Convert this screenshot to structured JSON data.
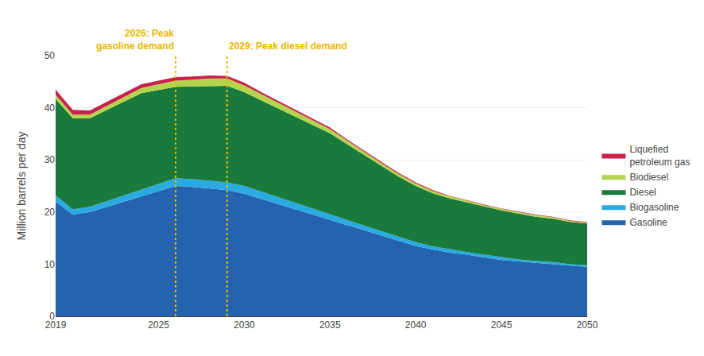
{
  "chart_data": {
    "type": "area",
    "stacked": true,
    "x": [
      2019,
      2020,
      2021,
      2022,
      2023,
      2024,
      2025,
      2026,
      2027,
      2028,
      2029,
      2030,
      2031,
      2032,
      2033,
      2034,
      2035,
      2036,
      2037,
      2038,
      2039,
      2040,
      2041,
      2042,
      2043,
      2044,
      2045,
      2046,
      2047,
      2048,
      2049,
      2050
    ],
    "series": [
      {
        "name": "Gasoline",
        "color": "#2463ae",
        "values": [
          22.0,
          19.5,
          20.0,
          21.0,
          22.0,
          23.0,
          24.0,
          25.0,
          24.8,
          24.5,
          24.2,
          23.5,
          22.5,
          21.5,
          20.5,
          19.5,
          18.5,
          17.5,
          16.5,
          15.5,
          14.5,
          13.5,
          12.8,
          12.2,
          11.8,
          11.3,
          10.8,
          10.5,
          10.2,
          10.0,
          9.7,
          9.5
        ]
      },
      {
        "name": "Biogasoline",
        "color": "#29abe2",
        "values": [
          1.2,
          1.0,
          1.0,
          1.1,
          1.2,
          1.3,
          1.4,
          1.5,
          1.5,
          1.5,
          1.5,
          1.5,
          1.4,
          1.3,
          1.3,
          1.2,
          1.1,
          1.0,
          0.9,
          0.8,
          0.8,
          0.7,
          0.6,
          0.6,
          0.5,
          0.5,
          0.5,
          0.4,
          0.4,
          0.4,
          0.3,
          0.3
        ]
      },
      {
        "name": "Diesel",
        "color": "#1a7a3c",
        "values": [
          18.5,
          17.5,
          17.0,
          17.5,
          18.0,
          18.5,
          18.0,
          17.5,
          17.8,
          18.2,
          18.5,
          18.0,
          17.5,
          17.0,
          16.5,
          16.0,
          15.5,
          14.5,
          13.5,
          12.5,
          11.5,
          10.8,
          10.2,
          9.8,
          9.5,
          9.2,
          9.0,
          8.8,
          8.5,
          8.3,
          8.1,
          8.0
        ]
      },
      {
        "name": "Biodiesel",
        "color": "#b4d44e",
        "values": [
          0.8,
          0.7,
          0.7,
          0.8,
          0.9,
          1.0,
          1.1,
          1.2,
          1.3,
          1.4,
          1.4,
          1.3,
          1.2,
          1.1,
          1.0,
          0.9,
          0.8,
          0.7,
          0.6,
          0.6,
          0.5,
          0.5,
          0.4,
          0.4,
          0.4,
          0.3,
          0.3,
          0.3,
          0.3,
          0.3,
          0.2,
          0.2
        ]
      },
      {
        "name": "Liquefied\npetroleum gas",
        "color": "#c8214a",
        "values": [
          1.0,
          0.9,
          0.8,
          0.8,
          0.8,
          0.7,
          0.7,
          0.7,
          0.6,
          0.6,
          0.5,
          0.5,
          0.4,
          0.4,
          0.3,
          0.3,
          0.3,
          0.2,
          0.2,
          0.2,
          0.2,
          0.2,
          0.2,
          0.1,
          0.1,
          0.1,
          0.1,
          0.1,
          0.1,
          0.1,
          0.1,
          0.1
        ]
      }
    ],
    "ylabel": "Million barrels per day",
    "xlim": [
      2019,
      2050
    ],
    "xticks": [
      2019,
      2025,
      2030,
      2035,
      2040,
      2045,
      2050
    ],
    "ylim": [
      0,
      50
    ],
    "yticks": [
      0,
      10,
      20,
      30,
      40,
      50
    ],
    "grid": true,
    "legend": "right",
    "vlines": [
      {
        "x": 2026,
        "color": "#e8b800"
      },
      {
        "x": 2029,
        "color": "#e8b800"
      }
    ],
    "annotations": [
      {
        "text": "2026: Peak\ngasoline demand",
        "color": "#e8b800"
      },
      {
        "text": "2029: Peak diesel demand",
        "color": "#e8b800"
      }
    ]
  }
}
